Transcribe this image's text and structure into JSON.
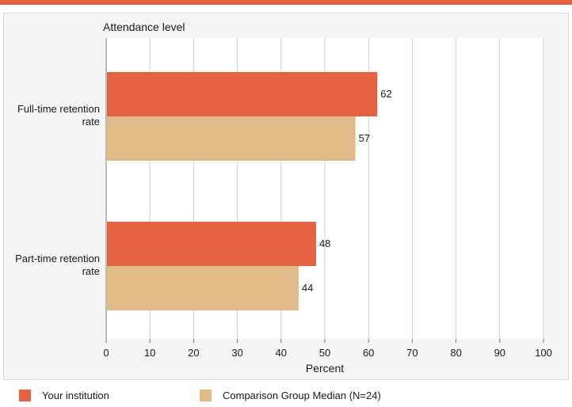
{
  "chart_data": {
    "type": "bar",
    "orientation": "horizontal",
    "ylabel": "Attendance level",
    "xlabel": "Percent",
    "categories": [
      "Full-time retention rate",
      "Part-time retention rate"
    ],
    "category_lines": [
      [
        "Full-time retention",
        "rate"
      ],
      [
        "Part-time retention",
        "rate"
      ]
    ],
    "series": [
      {
        "name": "Your institution",
        "values": [
          62,
          48
        ],
        "color": "#e56241"
      },
      {
        "name": "Comparison Group Median (N=24)",
        "values": [
          57,
          44
        ],
        "color": "#e0bb88"
      }
    ],
    "xlim": [
      0,
      100
    ],
    "xticks": [
      0,
      10,
      20,
      30,
      40,
      50,
      60,
      70,
      80,
      90,
      100
    ],
    "grid": true,
    "legend_position": "bottom"
  },
  "colors": {
    "accent_rule": "#e56241",
    "panel_bg": "#f5f5f5",
    "plot_bg": "#ffffff",
    "grid": "#cfcfcf",
    "axis": "#7a7a7a"
  }
}
